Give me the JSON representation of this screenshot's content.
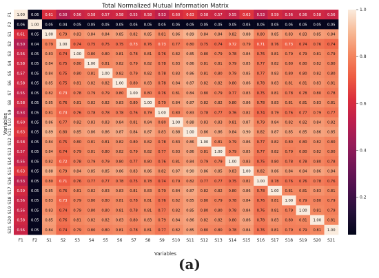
{
  "chart_data": {
    "type": "heatmap",
    "title": "Total Normalized Mutual Information Matrix",
    "xlabel": "Variables",
    "ylabel": "Variables",
    "labels": [
      "F1",
      "F2",
      "S1",
      "S2",
      "S3",
      "S4",
      "S5",
      "S6",
      "S7",
      "S8",
      "S9",
      "S10",
      "S11",
      "S12",
      "S13",
      "S14",
      "S15",
      "S16",
      "S17",
      "S18",
      "S19",
      "S20",
      "S21"
    ],
    "matrix": [
      [
        1.0,
        0.06,
        0.61,
        0.5,
        0.56,
        0.58,
        0.57,
        0.58,
        0.55,
        0.58,
        0.53,
        0.6,
        0.63,
        0.58,
        0.57,
        0.55,
        0.63,
        0.53,
        0.59,
        0.56,
        0.56,
        0.58,
        0.56
      ],
      [
        0.06,
        1.0,
        0.05,
        0.04,
        0.05,
        0.05,
        0.05,
        0.05,
        0.05,
        0.05,
        0.05,
        0.05,
        0.05,
        0.05,
        0.05,
        0.05,
        0.05,
        0.05,
        0.05,
        0.05,
        0.05,
        0.05,
        0.05
      ],
      [
        0.61,
        0.05,
        1.0,
        0.79,
        0.83,
        0.84,
        0.84,
        0.85,
        0.82,
        0.85,
        0.81,
        0.86,
        0.89,
        0.84,
        0.84,
        0.82,
        0.88,
        0.8,
        0.85,
        0.83,
        0.83,
        0.85,
        0.84
      ],
      [
        0.5,
        0.04,
        0.79,
        1.0,
        0.74,
        0.75,
        0.75,
        0.75,
        0.73,
        0.76,
        0.73,
        0.77,
        0.8,
        0.75,
        0.74,
        0.72,
        0.79,
        0.71,
        0.76,
        0.73,
        0.74,
        0.76,
        0.74
      ],
      [
        0.56,
        0.05,
        0.83,
        0.74,
        1.0,
        0.8,
        0.8,
        0.81,
        0.78,
        0.81,
        0.76,
        0.82,
        0.85,
        0.8,
        0.79,
        0.78,
        0.84,
        0.76,
        0.81,
        0.79,
        0.79,
        0.81,
        0.79
      ],
      [
        0.58,
        0.05,
        0.84,
        0.75,
        0.8,
        1.0,
        0.81,
        0.82,
        0.79,
        0.82,
        0.78,
        0.83,
        0.86,
        0.81,
        0.81,
        0.79,
        0.85,
        0.77,
        0.82,
        0.8,
        0.8,
        0.82,
        0.8
      ],
      [
        0.57,
        0.05,
        0.84,
        0.75,
        0.8,
        0.81,
        1.0,
        0.82,
        0.79,
        0.82,
        0.78,
        0.83,
        0.86,
        0.81,
        0.8,
        0.79,
        0.85,
        0.77,
        0.83,
        0.8,
        0.8,
        0.82,
        0.8
      ],
      [
        0.58,
        0.05,
        0.85,
        0.75,
        0.81,
        0.82,
        0.82,
        1.0,
        0.8,
        0.83,
        0.78,
        0.84,
        0.87,
        0.82,
        0.82,
        0.8,
        0.86,
        0.78,
        0.83,
        0.81,
        0.81,
        0.83,
        0.81
      ],
      [
        0.55,
        0.05,
        0.82,
        0.73,
        0.78,
        0.79,
        0.79,
        0.8,
        1.0,
        0.8,
        0.76,
        0.81,
        0.84,
        0.8,
        0.79,
        0.77,
        0.83,
        0.75,
        0.81,
        0.78,
        0.78,
        0.8,
        0.78
      ],
      [
        0.58,
        0.05,
        0.85,
        0.76,
        0.81,
        0.82,
        0.82,
        0.83,
        0.8,
        1.0,
        0.79,
        0.84,
        0.87,
        0.82,
        0.82,
        0.8,
        0.86,
        0.78,
        0.83,
        0.81,
        0.81,
        0.83,
        0.81
      ],
      [
        0.53,
        0.05,
        0.81,
        0.73,
        0.76,
        0.78,
        0.78,
        0.78,
        0.76,
        0.79,
        1.0,
        0.8,
        0.83,
        0.78,
        0.77,
        0.76,
        0.82,
        0.74,
        0.79,
        0.76,
        0.77,
        0.79,
        0.77
      ],
      [
        0.6,
        0.05,
        0.86,
        0.77,
        0.82,
        0.83,
        0.83,
        0.84,
        0.81,
        0.84,
        0.8,
        1.0,
        0.88,
        0.83,
        0.83,
        0.81,
        0.87,
        0.79,
        0.84,
        0.82,
        0.82,
        0.84,
        0.82
      ],
      [
        0.63,
        0.05,
        0.89,
        0.8,
        0.85,
        0.86,
        0.86,
        0.87,
        0.84,
        0.87,
        0.83,
        0.88,
        1.0,
        0.86,
        0.86,
        0.84,
        0.9,
        0.82,
        0.87,
        0.85,
        0.85,
        0.86,
        0.85
      ],
      [
        0.58,
        0.05,
        0.84,
        0.75,
        0.8,
        0.81,
        0.81,
        0.82,
        0.8,
        0.82,
        0.78,
        0.83,
        0.86,
        1.0,
        0.81,
        0.79,
        0.86,
        0.77,
        0.82,
        0.8,
        0.8,
        0.82,
        0.8
      ],
      [
        0.57,
        0.05,
        0.84,
        0.74,
        0.79,
        0.81,
        0.8,
        0.82,
        0.79,
        0.82,
        0.77,
        0.83,
        0.86,
        0.81,
        1.0,
        0.79,
        0.85,
        0.77,
        0.82,
        0.79,
        0.8,
        0.82,
        0.8
      ],
      [
        0.55,
        0.05,
        0.82,
        0.72,
        0.78,
        0.79,
        0.79,
        0.8,
        0.77,
        0.8,
        0.76,
        0.81,
        0.84,
        0.79,
        0.79,
        1.0,
        0.83,
        0.75,
        0.8,
        0.78,
        0.78,
        0.8,
        0.78
      ],
      [
        0.63,
        0.05,
        0.88,
        0.79,
        0.84,
        0.85,
        0.85,
        0.86,
        0.83,
        0.86,
        0.82,
        0.87,
        0.9,
        0.86,
        0.85,
        0.83,
        1.0,
        0.82,
        0.86,
        0.84,
        0.84,
        0.86,
        0.84
      ],
      [
        0.53,
        0.05,
        0.8,
        0.71,
        0.76,
        0.77,
        0.77,
        0.78,
        0.75,
        0.78,
        0.74,
        0.79,
        0.82,
        0.77,
        0.77,
        0.75,
        0.82,
        1.0,
        0.78,
        0.76,
        0.76,
        0.78,
        0.76
      ],
      [
        0.59,
        0.05,
        0.85,
        0.76,
        0.81,
        0.82,
        0.83,
        0.83,
        0.81,
        0.83,
        0.79,
        0.84,
        0.87,
        0.82,
        0.82,
        0.8,
        0.86,
        0.78,
        1.0,
        0.81,
        0.81,
        0.83,
        0.81
      ],
      [
        0.56,
        0.05,
        0.83,
        0.73,
        0.79,
        0.8,
        0.8,
        0.81,
        0.78,
        0.81,
        0.76,
        0.82,
        0.85,
        0.8,
        0.79,
        0.78,
        0.84,
        0.76,
        0.81,
        1.0,
        0.79,
        0.8,
        0.79
      ],
      [
        0.56,
        0.05,
        0.83,
        0.74,
        0.79,
        0.8,
        0.8,
        0.81,
        0.78,
        0.81,
        0.77,
        0.82,
        0.85,
        0.8,
        0.8,
        0.78,
        0.84,
        0.76,
        0.81,
        0.79,
        1.0,
        0.81,
        0.79
      ],
      [
        0.58,
        0.05,
        0.85,
        0.76,
        0.81,
        0.82,
        0.82,
        0.83,
        0.8,
        0.83,
        0.79,
        0.84,
        0.86,
        0.82,
        0.82,
        0.8,
        0.86,
        0.78,
        0.83,
        0.8,
        0.81,
        1.0,
        0.81
      ],
      [
        0.56,
        0.05,
        0.84,
        0.74,
        0.79,
        0.8,
        0.8,
        0.81,
        0.78,
        0.81,
        0.77,
        0.82,
        0.85,
        0.8,
        0.8,
        0.78,
        0.84,
        0.76,
        0.81,
        0.79,
        0.79,
        0.81,
        1.0
      ]
    ],
    "colorbar": {
      "ticks": [
        0.2,
        0.4,
        0.6,
        0.8,
        1.0
      ],
      "range": [
        0.04,
        1.0
      ],
      "colormap": "rocket"
    },
    "grid": false,
    "legend": "colorbar-right"
  },
  "caption": "(a)"
}
